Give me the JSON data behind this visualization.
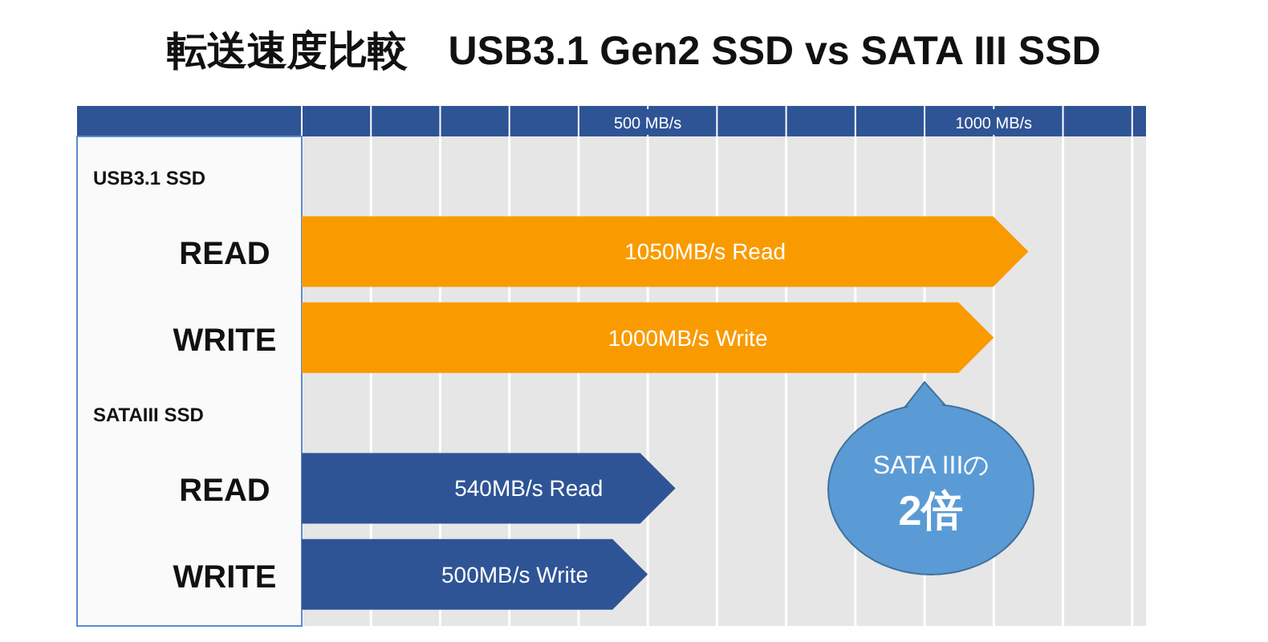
{
  "chart_data": {
    "type": "bar",
    "orientation": "horizontal",
    "title": "転送速度比較　USB3.1 Gen2 SSD  vs  SATA III SSD",
    "categories": [
      "READ",
      "WRITE",
      "READ",
      "WRITE"
    ],
    "values": [
      1050,
      1000,
      540,
      500
    ],
    "colors": [
      "#f99b00",
      "#f99b00",
      "#2e5496",
      "#2e5496"
    ],
    "value_labels": [
      "1050MB/s Read",
      "1000MB/s Write",
      "540MB/s Read",
      "500MB/s Write"
    ],
    "xlim": [
      0,
      1220
    ],
    "xticks": [
      {
        "value": 0,
        "label": null
      },
      {
        "value": 100,
        "label": null
      },
      {
        "value": 200,
        "label": null
      },
      {
        "value": 300,
        "label": null
      },
      {
        "value": 400,
        "label": null
      },
      {
        "value": 500,
        "label": "500 MB/s"
      },
      {
        "value": 600,
        "label": null
      },
      {
        "value": 700,
        "label": null
      },
      {
        "value": 800,
        "label": null
      },
      {
        "value": 900,
        "label": null
      },
      {
        "value": 1000,
        "label": "1000 MB/s"
      },
      {
        "value": 1100,
        "label": null
      },
      {
        "value": 1200,
        "label": null
      }
    ],
    "grid": "x",
    "annotations": [
      "USB3.1 SSD",
      "SATAIII SSD",
      "SATA IIIの",
      "2倍"
    ]
  }
}
